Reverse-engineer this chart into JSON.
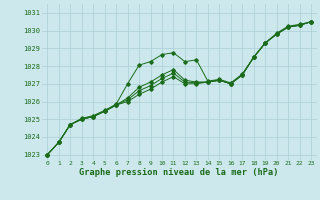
{
  "xlabel": "Graphe pression niveau de la mer (hPa)",
  "bg_color": "#cce8ec",
  "line_color": "#1a6b1a",
  "grid_color": "#aacdd4",
  "text_color": "#1a6b1a",
  "xlim": [
    -0.5,
    23.5
  ],
  "ylim": [
    1022.7,
    1031.5
  ],
  "yticks": [
    1023,
    1024,
    1025,
    1026,
    1027,
    1028,
    1029,
    1030,
    1031
  ],
  "xticks": [
    0,
    1,
    2,
    3,
    4,
    5,
    6,
    7,
    8,
    9,
    10,
    11,
    12,
    13,
    14,
    15,
    16,
    17,
    18,
    19,
    20,
    21,
    22,
    23
  ],
  "series1": [
    1023.0,
    1023.7,
    1024.7,
    1025.05,
    1025.2,
    1025.5,
    1025.85,
    1027.0,
    1028.05,
    1028.25,
    1028.65,
    1028.75,
    1028.25,
    1028.35,
    1027.15,
    1027.25,
    1027.05,
    1027.55,
    1028.5,
    1029.3,
    1029.85,
    1030.25,
    1030.35,
    1030.5
  ],
  "series2": [
    1023.0,
    1023.7,
    1024.7,
    1025.0,
    1025.15,
    1025.45,
    1025.8,
    1026.2,
    1026.8,
    1027.1,
    1027.5,
    1027.8,
    1027.2,
    1027.1,
    1027.1,
    1027.2,
    1027.0,
    1027.5,
    1028.5,
    1029.3,
    1029.8,
    1030.2,
    1030.3,
    1030.5
  ],
  "series3": [
    1023.0,
    1023.7,
    1024.7,
    1025.0,
    1025.15,
    1025.45,
    1025.8,
    1026.1,
    1026.6,
    1026.9,
    1027.3,
    1027.6,
    1027.1,
    1027.05,
    1027.1,
    1027.2,
    1027.0,
    1027.5,
    1028.5,
    1029.3,
    1029.8,
    1030.2,
    1030.3,
    1030.5
  ],
  "series4": [
    1023.0,
    1023.7,
    1024.7,
    1025.0,
    1025.15,
    1025.45,
    1025.8,
    1026.0,
    1026.4,
    1026.7,
    1027.1,
    1027.4,
    1027.0,
    1027.0,
    1027.1,
    1027.2,
    1027.0,
    1027.5,
    1028.5,
    1029.3,
    1029.8,
    1030.2,
    1030.3,
    1030.5
  ]
}
